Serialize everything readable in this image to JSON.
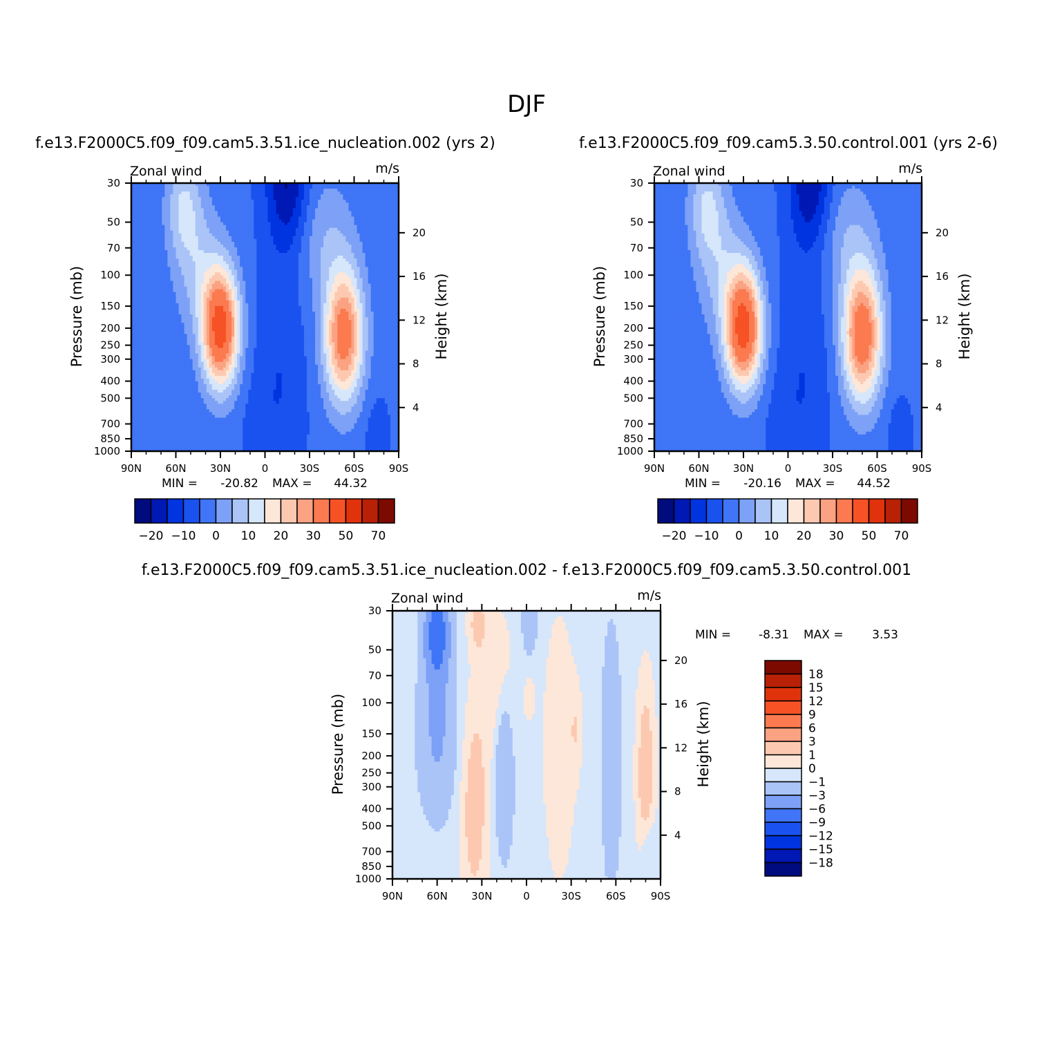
{
  "figure": {
    "title": "DJF"
  },
  "colors": {
    "main_scale": [
      "#000c7d",
      "#0018b4",
      "#0034e0",
      "#1a52f0",
      "#3f75f6",
      "#7da1f6",
      "#aac4f8",
      "#d6e6fb",
      "#fde7d9",
      "#fcc9b0",
      "#fba282",
      "#fb7a4f",
      "#f65226",
      "#e0330c",
      "#b92106",
      "#7d0a00"
    ],
    "diff_scale": [
      "#000c7d",
      "#0018b4",
      "#0034e0",
      "#1a52f0",
      "#3f75f6",
      "#7da1f6",
      "#aac4f8",
      "#d6e6fb",
      "#fde7d9",
      "#fcc9b0",
      "#fba282",
      "#fb7a4f",
      "#f65226",
      "#e0330c",
      "#b92106",
      "#7d0a00"
    ]
  },
  "chart_data": [
    {
      "type": "heatmap",
      "title": "f.e13.F2000C5.f09_f09.cam5.3.51.ice_nucleation.002 (yrs 2)",
      "left_label": "Zonal wind",
      "units": "m/s",
      "ylabel": "Pressure (mb)",
      "ylabel_right": "Height (km)",
      "x_ticks": [
        "90N",
        "60N",
        "30N",
        "0",
        "30S",
        "60S",
        "90S"
      ],
      "y_ticks": [
        "30",
        "50",
        "70",
        "100",
        "150",
        "200",
        "250",
        "300",
        "400",
        "500",
        "700",
        "850",
        "1000"
      ],
      "y_ticks_right": [
        "20",
        "16",
        "12",
        "8",
        "4"
      ],
      "min_label": "MIN =",
      "min_value": "-20.82",
      "max_label": "MAX =",
      "max_value": "44.32",
      "colorbar_labels": [
        "-20",
        "-10",
        "0",
        "10",
        "20",
        "30",
        "50",
        "70"
      ],
      "jets": {
        "nh_center_lat": -30,
        "nh_center_p": 200,
        "nh_peak": 44.3,
        "sh_center_lat": 53,
        "sh_center_p": 220,
        "sh_peak": 35,
        "min": -20.8
      }
    },
    {
      "type": "heatmap",
      "title": "f.e13.F2000C5.f09_f09.cam5.3.50.control.001 (yrs 2-6)",
      "left_label": "Zonal wind",
      "units": "m/s",
      "ylabel": "Pressure (mb)",
      "ylabel_right": "Height (km)",
      "x_ticks": [
        "90N",
        "60N",
        "30N",
        "0",
        "30S",
        "60S",
        "90S"
      ],
      "y_ticks": [
        "30",
        "50",
        "70",
        "100",
        "150",
        "200",
        "250",
        "300",
        "400",
        "500",
        "700",
        "850",
        "1000"
      ],
      "y_ticks_right": [
        "20",
        "16",
        "12",
        "8",
        "4"
      ],
      "min_label": "MIN =",
      "min_value": "-20.16",
      "max_label": "MAX =",
      "max_value": "44.52",
      "colorbar_labels": [
        "-20",
        "-10",
        "0",
        "10",
        "20",
        "30",
        "50",
        "70"
      ],
      "jets": {
        "nh_center_lat": -30,
        "nh_center_p": 200,
        "nh_peak": 44.5,
        "sh_center_lat": 50,
        "sh_center_p": 220,
        "sh_peak": 37,
        "min": -20.2
      }
    },
    {
      "type": "heatmap",
      "title": "f.e13.F2000C5.f09_f09.cam5.3.51.ice_nucleation.002 - f.e13.F2000C5.f09_f09.cam5.3.50.control.001",
      "left_label": "Zonal wind",
      "units": "m/s",
      "ylabel": "Pressure (mb)",
      "ylabel_right": "Height (km)",
      "x_ticks": [
        "90N",
        "60N",
        "30N",
        "0",
        "30S",
        "60S",
        "90S"
      ],
      "y_ticks": [
        "30",
        "50",
        "70",
        "100",
        "150",
        "200",
        "250",
        "300",
        "400",
        "500",
        "700",
        "850",
        "1000"
      ],
      "y_ticks_right": [
        "20",
        "16",
        "12",
        "8",
        "4"
      ],
      "min_label": "MIN =",
      "min_value": "-8.31",
      "max_label": "MAX =",
      "max_value": "3.53",
      "colorbar_labels": [
        "18",
        "15",
        "12",
        "9",
        "6",
        "3",
        "1",
        "0",
        "-1",
        "-3",
        "-6",
        "-9",
        "-12",
        "-15",
        "-18"
      ]
    }
  ]
}
